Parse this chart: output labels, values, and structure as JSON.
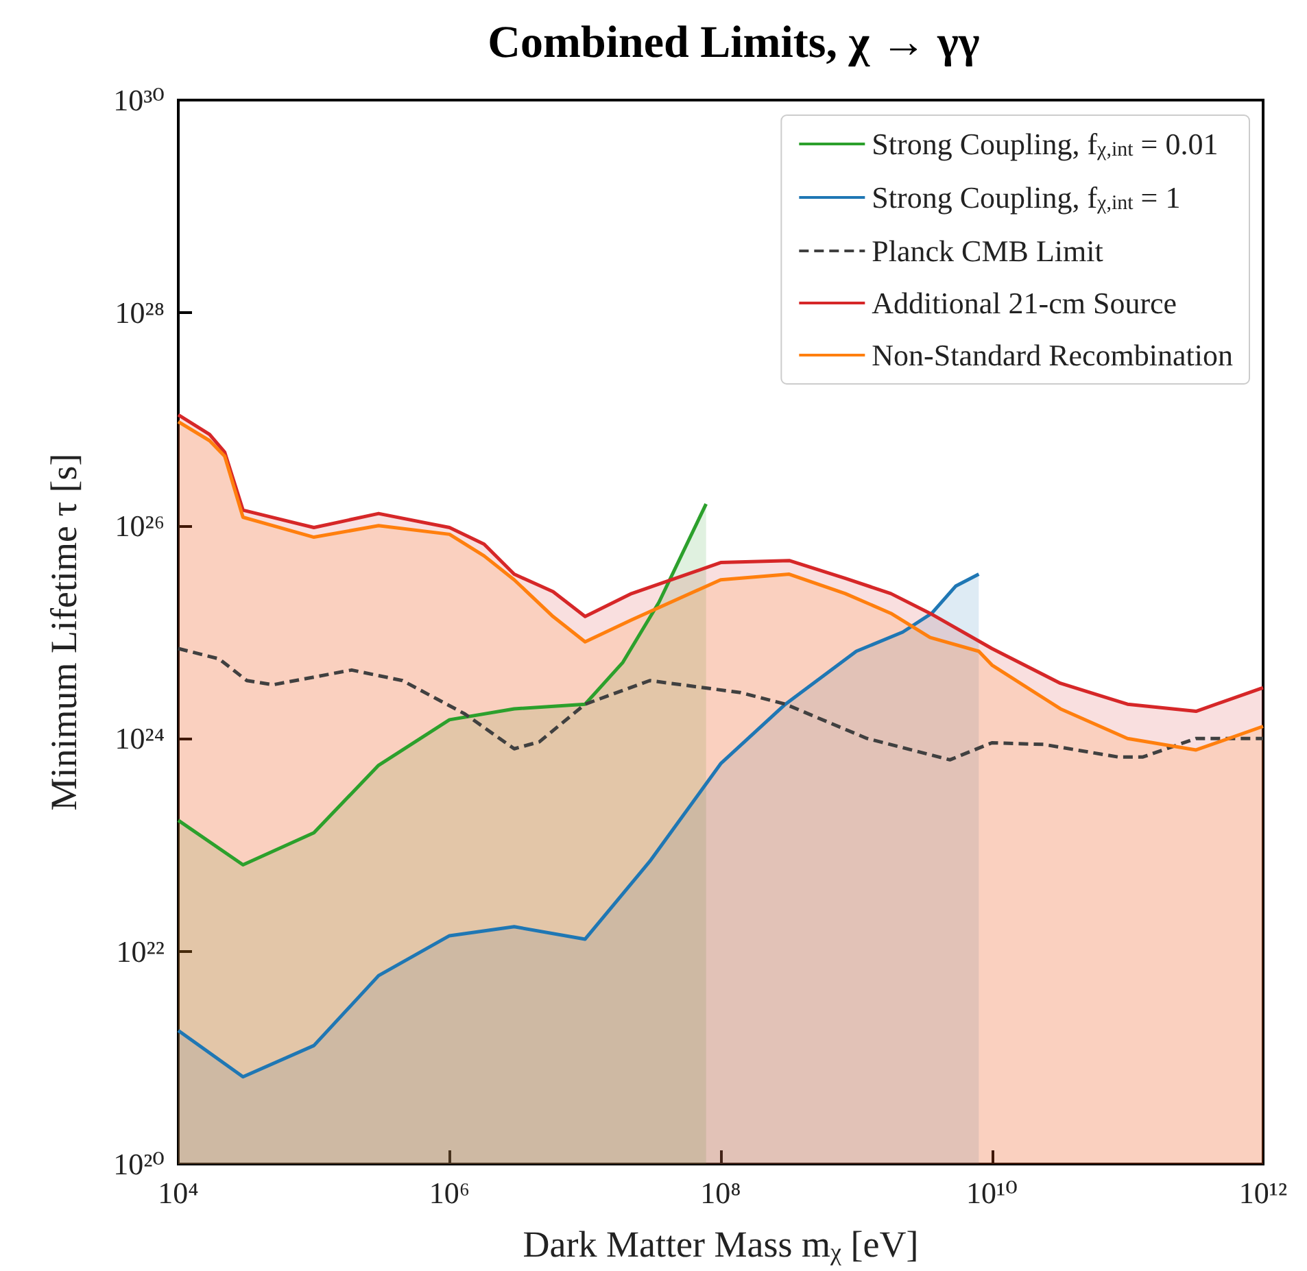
{
  "chart_data": {
    "type": "area",
    "title": "Combined Limits, χ → γγ",
    "xlabel": "Dark Matter Mass m$_{χ}$ [eV]",
    "ylabel": "Minimum Lifetime τ [s]",
    "log": "xy",
    "grid": false,
    "legend": "top right",
    "marker": "none",
    "xlim": [
      10000.0,
      1000000000000.0
    ],
    "ylim": [
      1e+20,
      1e+30
    ],
    "xticks": [
      {
        "value": 10000.0,
        "label": "10⁴"
      },
      {
        "value": 1000000.0,
        "label": "10⁶"
      },
      {
        "value": 100000000.0,
        "label": "10⁸"
      },
      {
        "value": 10000000000.0,
        "label": "10¹⁰"
      },
      {
        "value": 1000000000000.0,
        "label": "10¹²"
      }
    ],
    "yticks": [
      {
        "value": 1e+20,
        "label": "10²⁰"
      },
      {
        "value": 1e+22,
        "label": "10²²"
      },
      {
        "value": 1e+24,
        "label": "10²⁴"
      },
      {
        "value": 1e+26,
        "label": "10²⁶"
      },
      {
        "value": 1e+28,
        "label": "10²⁸"
      },
      {
        "value": 1e+30,
        "label": "10³⁰"
      }
    ],
    "series": [
      {
        "name": "Strong Coupling, f$_{χ,int}$ = 0.01",
        "color": "#2ca02c",
        "x": [
          10000.0,
          30000.0,
          100000.0,
          300000.0,
          1000000.0,
          3000000.0,
          10000000.0,
          19000000.0,
          35000000.0,
          78000000.0
        ],
        "values": [
          1.7e+23,
          6.5e+22,
          1.3e+23,
          5.6e+23,
          1.5e+24,
          1.9e+24,
          2.1e+24,
          5.2e+24,
          1.9e+25,
          1.6e+26
        ]
      },
      {
        "name": "Strong Coupling, f$_{χ,int}$ = 1",
        "color": "#1f77b4",
        "x": [
          10000.0,
          30000.0,
          100000.0,
          300000.0,
          1000000.0,
          3000000.0,
          10000000.0,
          30000000.0,
          100000000.0,
          300000000.0,
          1000000000.0,
          2200000000.0,
          3600000000.0,
          5400000000.0,
          8000000000.0
        ],
        "values": [
          1.8e+21,
          6.6e+20,
          1.3e+21,
          5.9e+21,
          1.4e+22,
          1.7e+22,
          1.3e+22,
          7e+22,
          5.8e+23,
          2.1e+24,
          6.6e+24,
          1e+25,
          1.5e+25,
          2.7e+25,
          3.5e+25
        ]
      },
      {
        "name": "Planck CMB Limit",
        "type": "line",
        "line_style": "dashed",
        "color": "#404040",
        "x": [
          10000.0,
          20000.0,
          32000.0,
          50000.0,
          190000.0,
          450000.0,
          1300000.0,
          3000000.0,
          4600000.0,
          10000000.0,
          30000000.0,
          140000000.0,
          300000000.0,
          1200000000.0,
          4900000000.0,
          10000000000.0,
          24000000000.0,
          85000000000.0,
          130000000000.0,
          320000000000.0,
          1000000000000.0
        ],
        "values": [
          7e+24,
          5.6e+24,
          3.5e+24,
          3.2e+24,
          4.4e+24,
          3.5e+24,
          1.7e+24,
          8e+23,
          9.3e+23,
          2.1e+24,
          3.5e+24,
          2.7e+24,
          2.1e+24,
          1e+24,
          6.3e+23,
          9.1e+23,
          8.8e+23,
          6.7e+23,
          6.7e+23,
          1e+24,
          1e+24
        ]
      },
      {
        "name": "Additional 21-cm Source",
        "color": "#d62728",
        "x": [
          10000.0,
          17000.0,
          22000.0,
          30000.0,
          100000.0,
          300000.0,
          1000000.0,
          1800000.0,
          3000000.0,
          5800000.0,
          10000000.0,
          22000000.0,
          100000000.0,
          320000000.0,
          830000000.0,
          1800000000.0,
          3500000000.0,
          10000000000.0,
          32000000000.0,
          100000000000.0,
          320000000000.0,
          1000000000000.0
        ],
        "values": [
          1.1e+27,
          7.2e+26,
          4.9e+26,
          1.4e+26,
          9.6e+25,
          1.3e+26,
          9.6e+25,
          6.7e+25,
          3.5e+25,
          2.4e+25,
          1.4e+25,
          2.3e+25,
          4.5e+25,
          4.7e+25,
          3.2e+25,
          2.3e+25,
          1.5e+25,
          7e+24,
          3.3e+24,
          2.1e+24,
          1.8e+24,
          3e+24
        ]
      },
      {
        "name": "Non-Standard Recombination",
        "color": "#ff7f0e",
        "x": [
          10000.0,
          17000.0,
          22000.0,
          30000.0,
          100000.0,
          300000.0,
          1000000.0,
          1800000.0,
          3000000.0,
          5800000.0,
          10000000.0,
          22000000.0,
          100000000.0,
          320000000.0,
          830000000.0,
          1800000000.0,
          3500000000.0,
          8000000000.0,
          10000000000.0,
          32000000000.0,
          100000000000.0,
          320000000000.0,
          1000000000000.0
        ],
        "values": [
          9.5e+26,
          6.3e+26,
          4.5e+26,
          1.2e+26,
          7.8e+25,
          1e+26,
          8.3e+25,
          5.2e+25,
          3.1e+25,
          1.4e+25,
          8.1e+24,
          1.3e+25,
          3.1e+25,
          3.5e+25,
          2.3e+25,
          1.5e+25,
          8.9e+24,
          6.6e+24,
          4.9e+24,
          1.9e+24,
          1e+24,
          7.8e+23,
          1.3e+24
        ]
      }
    ]
  }
}
